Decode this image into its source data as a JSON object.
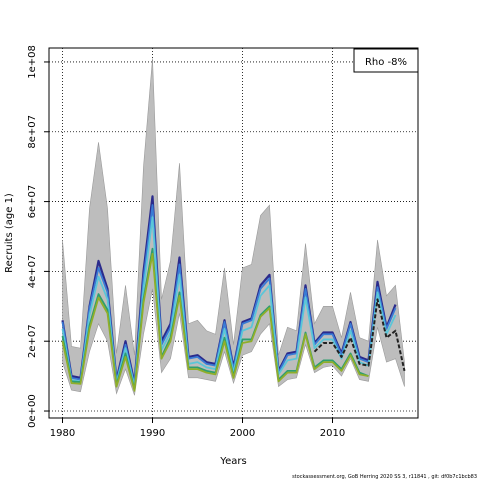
{
  "chart_data": {
    "type": "line",
    "title": "",
    "xlabel": "Years",
    "ylabel": "Recruits (age 1)",
    "xlim": [
      1978.5,
      2019.5
    ],
    "ylim": [
      -2000000,
      104000000
    ],
    "x_ticks": [
      1980,
      1990,
      2000,
      2010
    ],
    "y_ticks": [
      0,
      20000000,
      40000000,
      60000000,
      80000000,
      100000000
    ],
    "y_tick_labels": [
      "0e+00",
      "2e+07",
      "4e+07",
      "6e+07",
      "8e+07",
      "1e+08"
    ],
    "grid": true,
    "legend": {
      "text": "Rho -8%",
      "placement": "top-right"
    },
    "colors": {
      "band": "#bdbdbd",
      "navy": "#2b2b8c",
      "blue": "#3a7bd5",
      "cyan": "#5bc6d8",
      "teal": "#2e9e6e",
      "olive": "#8fae2a",
      "black": "#222222"
    },
    "x": [
      1980,
      1981,
      1982,
      1983,
      1984,
      1985,
      1986,
      1987,
      1988,
      1989,
      1990,
      1991,
      1992,
      1993,
      1994,
      1995,
      1996,
      1997,
      1998,
      1999,
      2000,
      2001,
      2002,
      2003,
      2004,
      2005,
      2006,
      2007,
      2008,
      2009,
      2010,
      2011,
      2012,
      2013,
      2014,
      2015,
      2016,
      2017,
      2018
    ],
    "band": {
      "lower": [
        14000000,
        6000000,
        5500000,
        17000000,
        25000000,
        20000000,
        5000000,
        12000000,
        4500000,
        22000000,
        35000000,
        11000000,
        15000000,
        28000000,
        9500000,
        9500000,
        9000000,
        8500000,
        17000000,
        8000000,
        16000000,
        17000000,
        22000000,
        25000000,
        7000000,
        9000000,
        9500000,
        19000000,
        11000000,
        12500000,
        13000000,
        10000000,
        15000000,
        9000000,
        8500000,
        24000000,
        14000000,
        15000000,
        7000000
      ],
      "upper": [
        49000000,
        18500000,
        18000000,
        58000000,
        77000000,
        58000000,
        16500000,
        36000000,
        16000000,
        70000000,
        101000000,
        32000000,
        43000000,
        71000000,
        25000000,
        26000000,
        23000000,
        22000000,
        41000000,
        19000000,
        41000000,
        42000000,
        56000000,
        59000000,
        16000000,
        24000000,
        23000000,
        48000000,
        25000000,
        30000000,
        30000000,
        21000000,
        34000000,
        21000000,
        20000000,
        49000000,
        33000000,
        36000000,
        null
      ]
    },
    "series": [
      {
        "key": "navy",
        "values": [
          26000000,
          10000000,
          9500000,
          30000000,
          43000000,
          35000000,
          9000000,
          20000000,
          8000000,
          40000000,
          61500000,
          20000000,
          25000000,
          44000000,
          15500000,
          16000000,
          14000000,
          13500000,
          26000000,
          12500000,
          25500000,
          26500000,
          36000000,
          39000000,
          11500000,
          16500000,
          17000000,
          36000000,
          19500000,
          22500000,
          22500000,
          16500000,
          25500000,
          15500000,
          14500000,
          37000000,
          24000000,
          30500000,
          null
        ]
      },
      {
        "key": "blue",
        "values": [
          25500000,
          9500000,
          9000000,
          29500000,
          41000000,
          34000000,
          8500000,
          19000000,
          7500000,
          38000000,
          59000000,
          19000000,
          24000000,
          42000000,
          15000000,
          15500000,
          13500000,
          13000000,
          25500000,
          12000000,
          25000000,
          26000000,
          35000000,
          38000000,
          11000000,
          16000000,
          16500000,
          35000000,
          19000000,
          22000000,
          22000000,
          16000000,
          25000000,
          15000000,
          14000000,
          35500000,
          23500000,
          29500000,
          null
        ]
      },
      {
        "key": "cyan",
        "values": [
          23500000,
          8800000,
          8500000,
          27500000,
          38500000,
          32000000,
          8000000,
          18000000,
          7000000,
          35000000,
          55500000,
          17500000,
          22500000,
          39000000,
          13500000,
          14000000,
          12500000,
          12000000,
          23500000,
          11000000,
          23000000,
          24000000,
          33000000,
          36000000,
          10500000,
          14500000,
          15000000,
          32500000,
          18000000,
          20500000,
          20500000,
          15000000,
          23000000,
          14000000,
          13000000,
          34000000,
          22000000,
          27500000,
          null
        ]
      },
      {
        "key": "teal",
        "values": [
          21500000,
          8500000,
          8300000,
          24500000,
          33500000,
          29000000,
          7500000,
          16500000,
          6200000,
          32000000,
          46500000,
          15500000,
          21000000,
          34000000,
          12500000,
          12500000,
          11500000,
          11000000,
          21000000,
          10000000,
          20500000,
          20500000,
          27500000,
          30000000,
          9000000,
          11500000,
          11500000,
          22500000,
          12500000,
          14500000,
          14500000,
          12000000,
          16500000,
          11000000,
          10000000,
          null,
          null,
          null,
          null
        ]
      },
      {
        "key": "olive",
        "values": [
          20000000,
          8000000,
          7800000,
          23500000,
          32500000,
          28000000,
          7000000,
          15500000,
          5800000,
          31000000,
          45000000,
          15000000,
          20000000,
          33000000,
          12000000,
          12000000,
          11000000,
          10500000,
          20000000,
          9500000,
          19500000,
          20000000,
          27000000,
          29500000,
          8500000,
          11000000,
          11000000,
          22000000,
          12000000,
          14000000,
          14000000,
          11500000,
          16000000,
          10500000,
          10000000,
          null,
          null,
          null,
          null
        ]
      },
      {
        "key": "black",
        "values": [
          null,
          null,
          null,
          null,
          null,
          null,
          null,
          null,
          null,
          null,
          null,
          null,
          null,
          null,
          null,
          null,
          null,
          null,
          null,
          null,
          null,
          null,
          null,
          null,
          null,
          null,
          null,
          null,
          17000000,
          19500000,
          19500000,
          15500000,
          21000000,
          13500000,
          13000000,
          32000000,
          21000000,
          23000000,
          11500000
        ]
      }
    ]
  },
  "footer": "stockassessment.org, GoB Herring 2020 SS 3, r11841 , git: df0b7c1bcb83"
}
